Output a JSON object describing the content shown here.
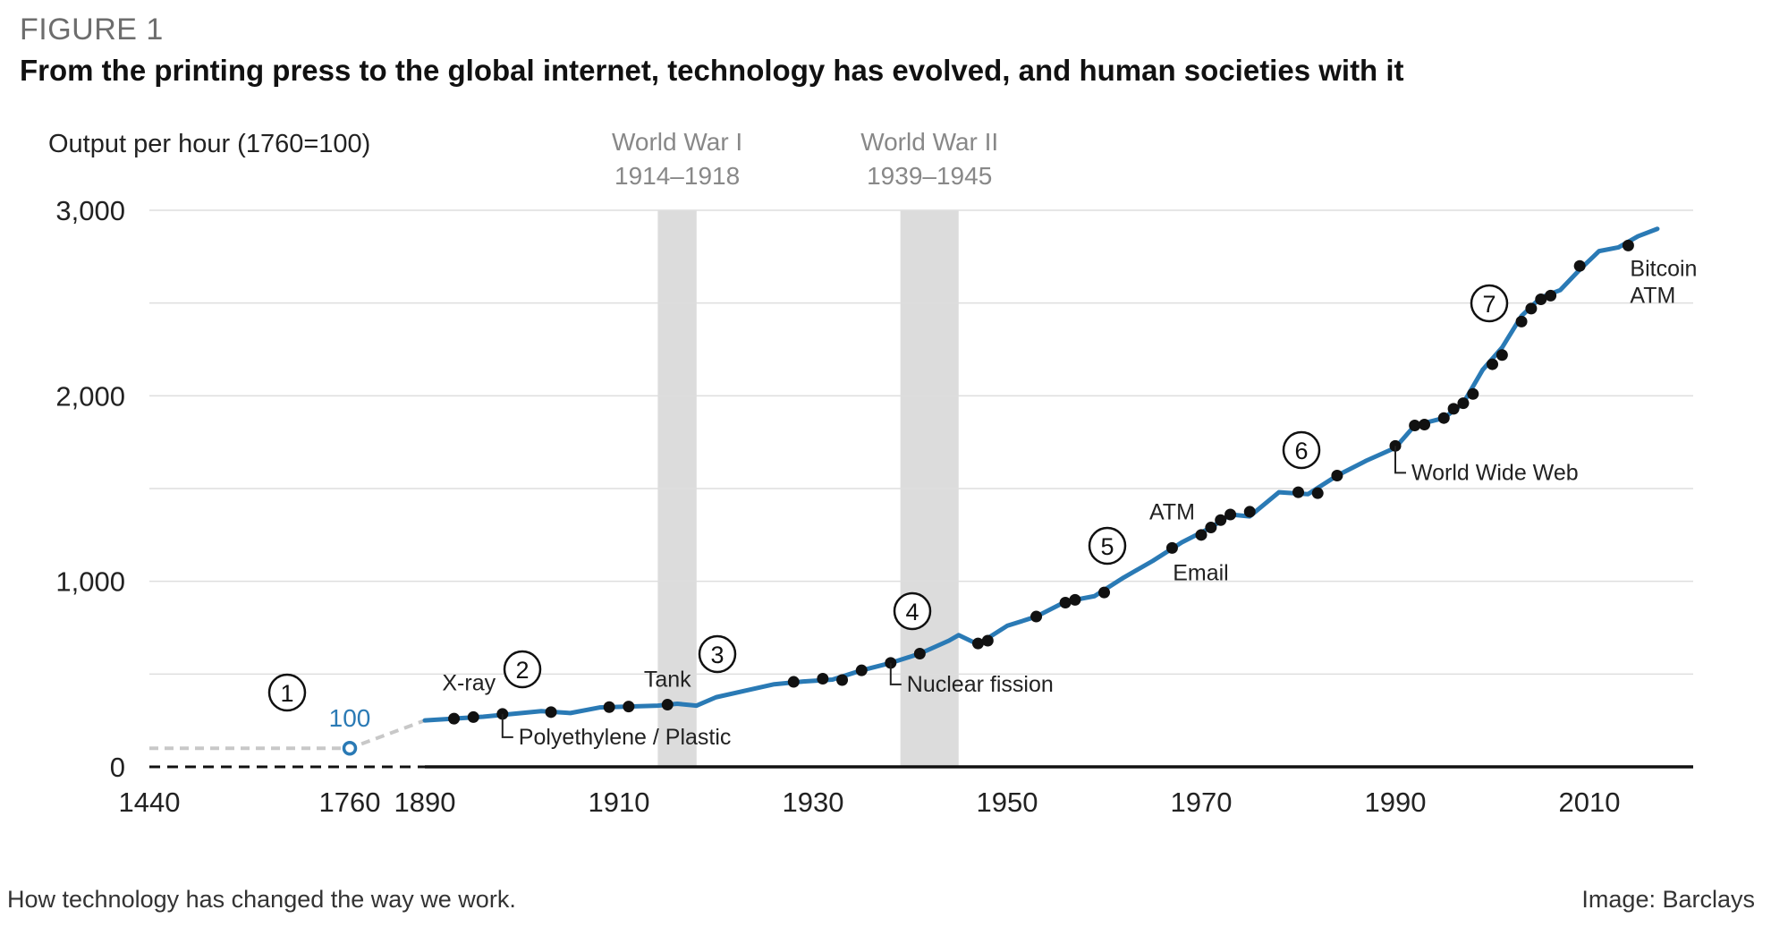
{
  "header": {
    "figure_label": "FIGURE 1",
    "title": "From the printing press to the global internet, technology has evolved, and human societies with it"
  },
  "footer": {
    "caption": "How technology has changed the way we work.",
    "credit": "Image: Barclays"
  },
  "colors": {
    "line": "#2a7ab5",
    "dot": "#111111",
    "band": "#dcdcdc",
    "grid": "#dedede",
    "dashed_early": "#c8c8c8",
    "highlight_text": "#2a7ab5"
  },
  "chart_data": {
    "type": "line",
    "title": "From the printing press to the global internet, technology has evolved, and human societies with it",
    "ylabel": "Output per hour (1760=100)",
    "xlabel": "",
    "ylim": [
      0,
      3000
    ],
    "grid": true,
    "x_axis_note": "Broken axis: 1440 and 1760 shown before a continuous 1890–2017 scale",
    "xticks": [
      "1440",
      "1760",
      "1890",
      "1910",
      "1930",
      "1950",
      "1970",
      "1990",
      "2010"
    ],
    "yticks": [
      {
        "value": 0,
        "label": "0"
      },
      {
        "value": 1000,
        "label": "1,000"
      },
      {
        "value": 2000,
        "label": "2,000"
      },
      {
        "value": 3000,
        "label": "3,000"
      }
    ],
    "shaded_periods": [
      {
        "name": "World War I",
        "years": "1914–1918",
        "start": 1914,
        "end": 1918
      },
      {
        "name": "World War II",
        "years": "1939–1945",
        "start": 1939,
        "end": 1945
      }
    ],
    "pre_industrial": {
      "points": [
        {
          "x": 1440,
          "y": 100
        },
        {
          "x": 1760,
          "y": 100
        },
        {
          "x": 1890,
          "y": 250
        }
      ],
      "label_1760": "100"
    },
    "series": [
      {
        "values": [
          {
            "x": 1890,
            "y": 250
          },
          {
            "x": 1893,
            "y": 260
          },
          {
            "x": 1896,
            "y": 270
          },
          {
            "x": 1899,
            "y": 285
          },
          {
            "x": 1902,
            "y": 300
          },
          {
            "x": 1905,
            "y": 290
          },
          {
            "x": 1908,
            "y": 320
          },
          {
            "x": 1911,
            "y": 325
          },
          {
            "x": 1914,
            "y": 330
          },
          {
            "x": 1916,
            "y": 340
          },
          {
            "x": 1918,
            "y": 330
          },
          {
            "x": 1920,
            "y": 375
          },
          {
            "x": 1923,
            "y": 410
          },
          {
            "x": 1926,
            "y": 445
          },
          {
            "x": 1929,
            "y": 460
          },
          {
            "x": 1932,
            "y": 470
          },
          {
            "x": 1935,
            "y": 520
          },
          {
            "x": 1938,
            "y": 560
          },
          {
            "x": 1941,
            "y": 610
          },
          {
            "x": 1944,
            "y": 680
          },
          {
            "x": 1945,
            "y": 710
          },
          {
            "x": 1947,
            "y": 660
          },
          {
            "x": 1950,
            "y": 760
          },
          {
            "x": 1953,
            "y": 810
          },
          {
            "x": 1956,
            "y": 890
          },
          {
            "x": 1959,
            "y": 920
          },
          {
            "x": 1962,
            "y": 1020
          },
          {
            "x": 1965,
            "y": 1110
          },
          {
            "x": 1968,
            "y": 1210
          },
          {
            "x": 1971,
            "y": 1290
          },
          {
            "x": 1973,
            "y": 1360
          },
          {
            "x": 1975,
            "y": 1350
          },
          {
            "x": 1978,
            "y": 1480
          },
          {
            "x": 1981,
            "y": 1470
          },
          {
            "x": 1984,
            "y": 1570
          },
          {
            "x": 1987,
            "y": 1650
          },
          {
            "x": 1990,
            "y": 1720
          },
          {
            "x": 1992,
            "y": 1840
          },
          {
            "x": 1995,
            "y": 1880
          },
          {
            "x": 1997,
            "y": 1960
          },
          {
            "x": 1999,
            "y": 2140
          },
          {
            "x": 2001,
            "y": 2260
          },
          {
            "x": 2003,
            "y": 2430
          },
          {
            "x": 2005,
            "y": 2530
          },
          {
            "x": 2007,
            "y": 2570
          },
          {
            "x": 2009,
            "y": 2680
          },
          {
            "x": 2011,
            "y": 2780
          },
          {
            "x": 2013,
            "y": 2800
          },
          {
            "x": 2015,
            "y": 2860
          },
          {
            "x": 2017,
            "y": 2900
          }
        ]
      }
    ],
    "markers": [
      {
        "x": 1893,
        "y": 260
      },
      {
        "x": 1895,
        "y": 268
      },
      {
        "x": 1898,
        "y": 285
      },
      {
        "x": 1903,
        "y": 295
      },
      {
        "x": 1909,
        "y": 322
      },
      {
        "x": 1911,
        "y": 325
      },
      {
        "x": 1915,
        "y": 335
      },
      {
        "x": 1928,
        "y": 458
      },
      {
        "x": 1931,
        "y": 475
      },
      {
        "x": 1933,
        "y": 468
      },
      {
        "x": 1935,
        "y": 520
      },
      {
        "x": 1938,
        "y": 560
      },
      {
        "x": 1941,
        "y": 610
      },
      {
        "x": 1947,
        "y": 665
      },
      {
        "x": 1948,
        "y": 680
      },
      {
        "x": 1953,
        "y": 810
      },
      {
        "x": 1956,
        "y": 885
      },
      {
        "x": 1957,
        "y": 900
      },
      {
        "x": 1960,
        "y": 940
      },
      {
        "x": 1967,
        "y": 1180
      },
      {
        "x": 1970,
        "y": 1250
      },
      {
        "x": 1971,
        "y": 1290
      },
      {
        "x": 1972,
        "y": 1330
      },
      {
        "x": 1973,
        "y": 1360
      },
      {
        "x": 1975,
        "y": 1375
      },
      {
        "x": 1980,
        "y": 1480
      },
      {
        "x": 1982,
        "y": 1475
      },
      {
        "x": 1984,
        "y": 1570
      },
      {
        "x": 1990,
        "y": 1730
      },
      {
        "x": 1992,
        "y": 1840
      },
      {
        "x": 1993,
        "y": 1845
      },
      {
        "x": 1995,
        "y": 1880
      },
      {
        "x": 1996,
        "y": 1930
      },
      {
        "x": 1997,
        "y": 1960
      },
      {
        "x": 1998,
        "y": 2010
      },
      {
        "x": 2000,
        "y": 2170
      },
      {
        "x": 2001,
        "y": 2220
      },
      {
        "x": 2003,
        "y": 2400
      },
      {
        "x": 2004,
        "y": 2470
      },
      {
        "x": 2005,
        "y": 2520
      },
      {
        "x": 2006,
        "y": 2540
      },
      {
        "x": 2009,
        "y": 2700
      },
      {
        "x": 2014,
        "y": 2810
      }
    ],
    "annotations": [
      {
        "text": "X-ray",
        "x": 1895,
        "y": 268
      },
      {
        "text": "Polyethylene / Plastic",
        "x": 1898,
        "y": 285
      },
      {
        "text": "Tank",
        "x": 1915,
        "y": 335
      },
      {
        "text": "Nuclear fission",
        "x": 1938,
        "y": 560
      },
      {
        "text": "ATM",
        "x": 1967,
        "y": 1180
      },
      {
        "text": "Email",
        "x": 1967,
        "y": 1180
      },
      {
        "text": "World Wide Web",
        "x": 1990,
        "y": 1730
      },
      {
        "text": "Bitcoin",
        "x": 2014,
        "y": 2810
      },
      {
        "text": "ATM",
        "x": 2014,
        "y": 2810
      }
    ],
    "era_markers": [
      "1",
      "2",
      "3",
      "4",
      "5",
      "6",
      "7"
    ]
  }
}
